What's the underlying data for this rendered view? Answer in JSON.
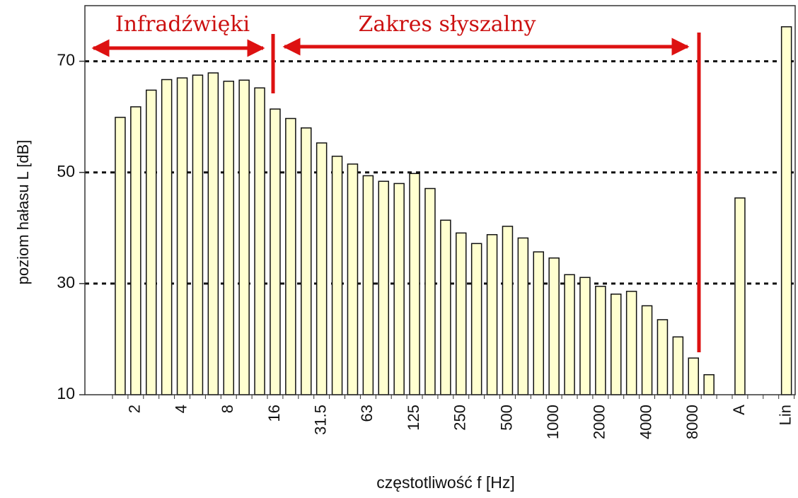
{
  "chart_data": {
    "type": "bar",
    "categories": [
      null,
      "2",
      null,
      null,
      "4",
      null,
      null,
      "8",
      null,
      null,
      "16",
      null,
      null,
      "31.5",
      null,
      null,
      "63",
      null,
      null,
      "125",
      null,
      null,
      "250",
      null,
      null,
      "500",
      null,
      null,
      "1000",
      null,
      null,
      "2000",
      null,
      null,
      "4000",
      null,
      null,
      "8000",
      null,
      null,
      "A",
      null,
      null,
      "Lin"
    ],
    "values": [
      59.9,
      61.8,
      64.8,
      66.7,
      67,
      67.5,
      67.9,
      66.4,
      66.6,
      65.2,
      61.4,
      59.7,
      58,
      55.3,
      52.9,
      51.5,
      49.4,
      48.4,
      48,
      49.8,
      47.1,
      41.4,
      39.1,
      37.2,
      38.8,
      40.3,
      38.2,
      35.7,
      34.6,
      31.6,
      31.1,
      29.5,
      28.1,
      28.6,
      26,
      23.5,
      20.4,
      16.6,
      13.6,
      null,
      45.4,
      null,
      null,
      76.2
    ],
    "color": "#ffffd0",
    "ylim": [
      10,
      80
    ],
    "yticks": [
      10,
      30,
      50,
      70
    ],
    "grid": true,
    "ylabel": "poziom hałasu L [dB]",
    "xlabel": "częstotliwość f [Hz]",
    "annotations": [
      "Infradźwięki",
      "Zakres słyszalny"
    ]
  }
}
